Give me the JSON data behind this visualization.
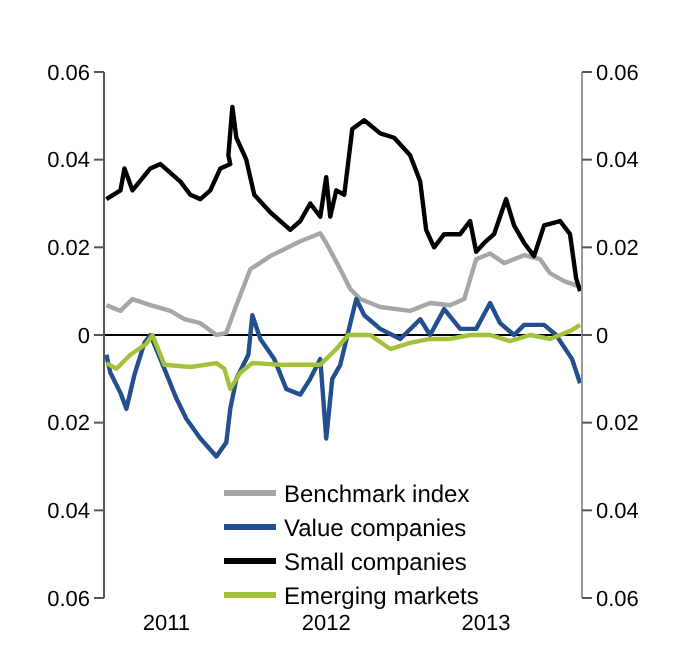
{
  "chart_data": {
    "type": "line",
    "xlim": [
      2011.11,
      2014.1
    ],
    "xticks": [
      {
        "value": 2011.5,
        "label": "2011"
      },
      {
        "value": 2012.5,
        "label": "2012"
      },
      {
        "value": 2013.5,
        "label": "2013"
      }
    ],
    "ylim": [
      -0.06,
      0.06
    ],
    "yticks": [
      {
        "value": -0.06,
        "label": "0.06"
      },
      {
        "value": -0.04,
        "label": "0.04"
      },
      {
        "value": -0.02,
        "label": "0.02"
      },
      0,
      0.02,
      0.04,
      0.06
    ],
    "y2lim": [
      -0.06,
      0.06
    ],
    "y2ticks": [
      {
        "value": -0.06,
        "label": "0.06"
      },
      {
        "value": -0.04,
        "label": "0.04"
      },
      {
        "value": -0.02,
        "label": "0.02"
      },
      0,
      0.02,
      0.04,
      0.06
    ],
    "ref_lines": [
      {
        "axis": "y",
        "value": 0,
        "color": "#000000"
      }
    ],
    "grid": false,
    "legend": "bottom",
    "series": [
      {
        "name": "Benchmark index",
        "color": "#a6a6a6",
        "x": [
          2011.125,
          2011.213,
          2011.288,
          2011.4,
          2011.525,
          2011.613,
          2011.713,
          2011.813,
          2011.875,
          2011.938,
          2012.025,
          2012.15,
          2012.338,
          2012.463,
          2012.5,
          2012.588,
          2012.65,
          2012.713,
          2012.838,
          2013.025,
          2013.15,
          2013.275,
          2013.363,
          2013.438,
          2013.525,
          2013.613,
          2013.738,
          2013.838,
          2013.9,
          2013.988,
          2014.088
        ],
        "values": [
          0.0068,
          0.0055,
          0.0082,
          0.0068,
          0.0055,
          0.0036,
          0.0027,
          0.0,
          0.0005,
          0.0068,
          0.015,
          0.018,
          0.0214,
          0.0232,
          0.021,
          0.015,
          0.0105,
          0.0082,
          0.0064,
          0.0055,
          0.0073,
          0.0068,
          0.0082,
          0.0173,
          0.0186,
          0.0164,
          0.0182,
          0.0173,
          0.0141,
          0.0123,
          0.011
        ]
      },
      {
        "name": "Value companies",
        "color": "#234f8e",
        "x": [
          2011.125,
          2011.15,
          2011.213,
          2011.25,
          2011.3,
          2011.363,
          2011.4,
          2011.463,
          2011.563,
          2011.625,
          2011.713,
          2011.813,
          2011.875,
          2011.9,
          2011.938,
          2012.013,
          2012.038,
          2012.088,
          2012.175,
          2012.25,
          2012.338,
          2012.4,
          2012.463,
          2012.5,
          2012.538,
          2012.588,
          2012.663,
          2012.688,
          2012.738,
          2012.838,
          2012.963,
          2013.088,
          2013.15,
          2013.238,
          2013.338,
          2013.438,
          2013.525,
          2013.588,
          2013.675,
          2013.738,
          2013.863,
          2013.938,
          2014.038,
          2014.088
        ],
        "values": [
          -0.0045,
          -0.0086,
          -0.0132,
          -0.0168,
          -0.0091,
          -0.0018,
          0.0,
          -0.0055,
          -0.0145,
          -0.0191,
          -0.0236,
          -0.0277,
          -0.0245,
          -0.0168,
          -0.01,
          -0.0045,
          0.0045,
          -0.0009,
          -0.0055,
          -0.0123,
          -0.0136,
          -0.01,
          -0.0055,
          -0.0236,
          -0.01,
          -0.0068,
          0.0045,
          0.0082,
          0.0045,
          0.0014,
          -0.0009,
          0.0036,
          0.0,
          0.0059,
          0.0014,
          0.0014,
          0.0073,
          0.0027,
          0.0,
          0.0023,
          0.0023,
          0.0,
          -0.0055,
          -0.011
        ]
      },
      {
        "name": "Small companies",
        "color": "#000000",
        "x": [
          2011.125,
          2011.213,
          2011.238,
          2011.288,
          2011.4,
          2011.463,
          2011.588,
          2011.65,
          2011.713,
          2011.775,
          2011.838,
          2011.9,
          2011.888,
          2011.913,
          2011.938,
          2012.0,
          2012.05,
          2012.15,
          2012.275,
          2012.338,
          2012.4,
          2012.463,
          2012.5,
          2012.525,
          2012.563,
          2012.613,
          2012.663,
          2012.738,
          2012.838,
          2012.925,
          2013.025,
          2013.088,
          2013.125,
          2013.175,
          2013.238,
          2013.338,
          2013.4,
          2013.438,
          2013.488,
          2013.55,
          2013.625,
          2013.675,
          2013.738,
          2013.8,
          2013.863,
          2013.963,
          2014.025,
          2014.063,
          2014.088
        ],
        "values": [
          0.031,
          0.033,
          0.038,
          0.033,
          0.038,
          0.039,
          0.035,
          0.032,
          0.031,
          0.033,
          0.038,
          0.039,
          0.041,
          0.052,
          0.045,
          0.04,
          0.032,
          0.028,
          0.024,
          0.026,
          0.03,
          0.027,
          0.036,
          0.027,
          0.033,
          0.032,
          0.047,
          0.049,
          0.046,
          0.045,
          0.041,
          0.035,
          0.024,
          0.02,
          0.023,
          0.023,
          0.026,
          0.019,
          0.021,
          0.023,
          0.031,
          0.025,
          0.021,
          0.018,
          0.025,
          0.026,
          0.023,
          0.013,
          0.01
        ]
      },
      {
        "name": "Emerging markets",
        "color": "#a3c23a",
        "x": [
          2011.125,
          2011.188,
          2011.275,
          2011.375,
          2011.413,
          2011.488,
          2011.65,
          2011.813,
          2011.863,
          2011.9,
          2011.963,
          2012.038,
          2012.213,
          2012.338,
          2012.463,
          2012.563,
          2012.638,
          2012.775,
          2012.9,
          2013.025,
          2013.15,
          2013.275,
          2013.4,
          2013.525,
          2013.65,
          2013.775,
          2013.9,
          2014.025,
          2014.088
        ],
        "values": [
          -0.0064,
          -0.0077,
          -0.0045,
          -0.002,
          0.0,
          -0.0068,
          -0.0073,
          -0.0064,
          -0.0077,
          -0.0123,
          -0.0086,
          -0.0064,
          -0.0068,
          -0.0068,
          -0.0068,
          -0.0032,
          0.0,
          0.0,
          -0.0032,
          -0.0018,
          -0.0009,
          -0.0009,
          0.0,
          0.0,
          -0.0014,
          0.0,
          -0.0009,
          0.0009,
          0.0023
        ]
      }
    ]
  }
}
